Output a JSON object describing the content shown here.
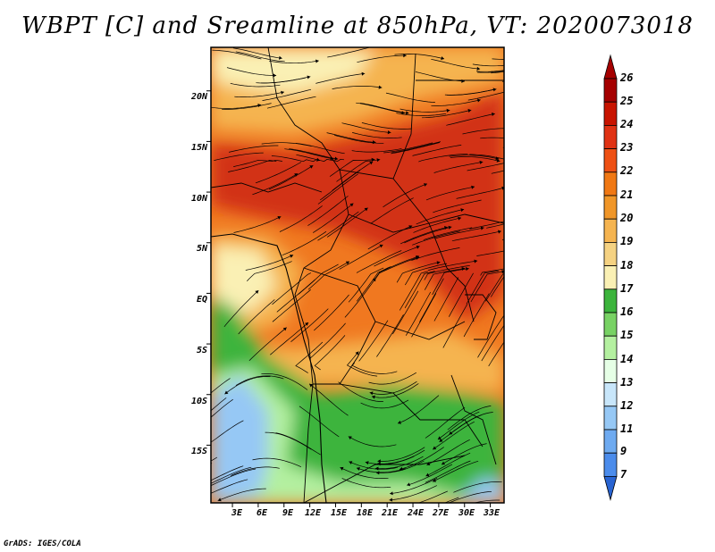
{
  "title": "WBPT [C] and Sreamline at 850hPa, VT: 2020073018",
  "credit": "GrADS: IGES/COLA",
  "y_axis": {
    "labels": [
      "20N",
      "15N",
      "10N",
      "5N",
      "EQ",
      "5S",
      "10S",
      "15S"
    ],
    "values": [
      20,
      15,
      10,
      5,
      0,
      -5,
      -10,
      -15
    ],
    "range": [
      -20.7,
      24.3
    ]
  },
  "x_axis": {
    "labels": [
      "3E",
      "6E",
      "9E",
      "12E",
      "15E",
      "18E",
      "21E",
      "24E",
      "27E",
      "30E",
      "33E"
    ],
    "values": [
      3,
      6,
      9,
      12,
      15,
      18,
      21,
      24,
      27,
      30,
      33
    ],
    "range": [
      0.5,
      34.6
    ]
  },
  "colorbar": {
    "labels": [
      "26",
      "25",
      "24",
      "23",
      "22",
      "21",
      "20",
      "19",
      "18",
      "17",
      "16",
      "15",
      "14",
      "13",
      "12",
      "11",
      "9",
      "7"
    ],
    "colors": [
      "#a50000",
      "#c81400",
      "#e03214",
      "#ee5014",
      "#f07814",
      "#f09628",
      "#f5b450",
      "#f5d282",
      "#faf0b4",
      "#3cb43c",
      "#78d264",
      "#b4f0a0",
      "#e6ffe6",
      "#c8e6fa",
      "#96c8f5",
      "#6eaaf0",
      "#4b8ceb",
      "#2864d2"
    ],
    "top_arrow_color": "#a50000",
    "bottom_arrow_color": "#2864d2"
  },
  "field_colors": {
    "hot": "#d23214",
    "warm": "#f07820",
    "mild": "#f5b450",
    "cool": "#faf0b4",
    "green": "#3cb43c",
    "lightgreen": "#b4f0a0",
    "blue": "#96c8f5"
  }
}
